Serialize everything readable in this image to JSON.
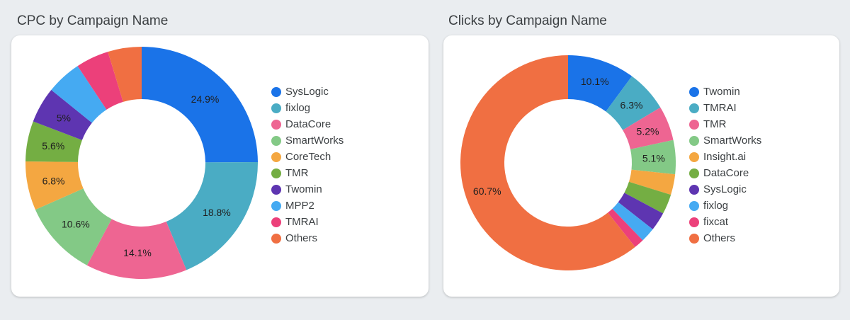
{
  "charts": [
    {
      "title": "CPC by Campaign Name",
      "chart_data": {
        "type": "pie",
        "donut": true,
        "title": "CPC by Campaign Name",
        "legend_position": "right",
        "categories": [
          "SysLogic",
          "fixlog",
          "DataCore",
          "SmartWorks",
          "CoreTech",
          "TMR",
          "Twomin",
          "MPP2",
          "TMRAI",
          "Others"
        ],
        "values": [
          24.9,
          18.8,
          14.1,
          10.6,
          6.8,
          5.6,
          5.0,
          4.9,
          4.6,
          4.7
        ],
        "data_labels": [
          "24.9%",
          "18.8%",
          "14.1%",
          "10.6%",
          "6.8%",
          "5.6%",
          "5%",
          "",
          "",
          ""
        ],
        "colors": [
          "#1a73e8",
          "#4aacc4",
          "#ee6592",
          "#83c986",
          "#f4a741",
          "#74ae43",
          "#5e35b1",
          "#45aaf2",
          "#ec407a",
          "#f06f42"
        ]
      }
    },
    {
      "title": "Clicks by Campaign Name",
      "chart_data": {
        "type": "pie",
        "donut": true,
        "title": "Clicks by Campaign Name",
        "legend_position": "right",
        "categories": [
          "Twomin",
          "TMRAI",
          "TMR",
          "SmartWorks",
          "Insight.ai",
          "DataCore",
          "SysLogic",
          "fixlog",
          "fixcat",
          "Others"
        ],
        "values": [
          10.1,
          6.3,
          5.2,
          5.1,
          3.1,
          3.0,
          2.8,
          2.2,
          1.5,
          60.7
        ],
        "data_labels": [
          "10.1%",
          "6.3%",
          "5.2%",
          "5.1%",
          "",
          "",
          "",
          "",
          "",
          "60.7%"
        ],
        "colors": [
          "#1a73e8",
          "#4aacc4",
          "#ee6592",
          "#83c986",
          "#f4a741",
          "#74ae43",
          "#5e35b1",
          "#45aaf2",
          "#ec407a",
          "#f06f42"
        ]
      }
    }
  ]
}
